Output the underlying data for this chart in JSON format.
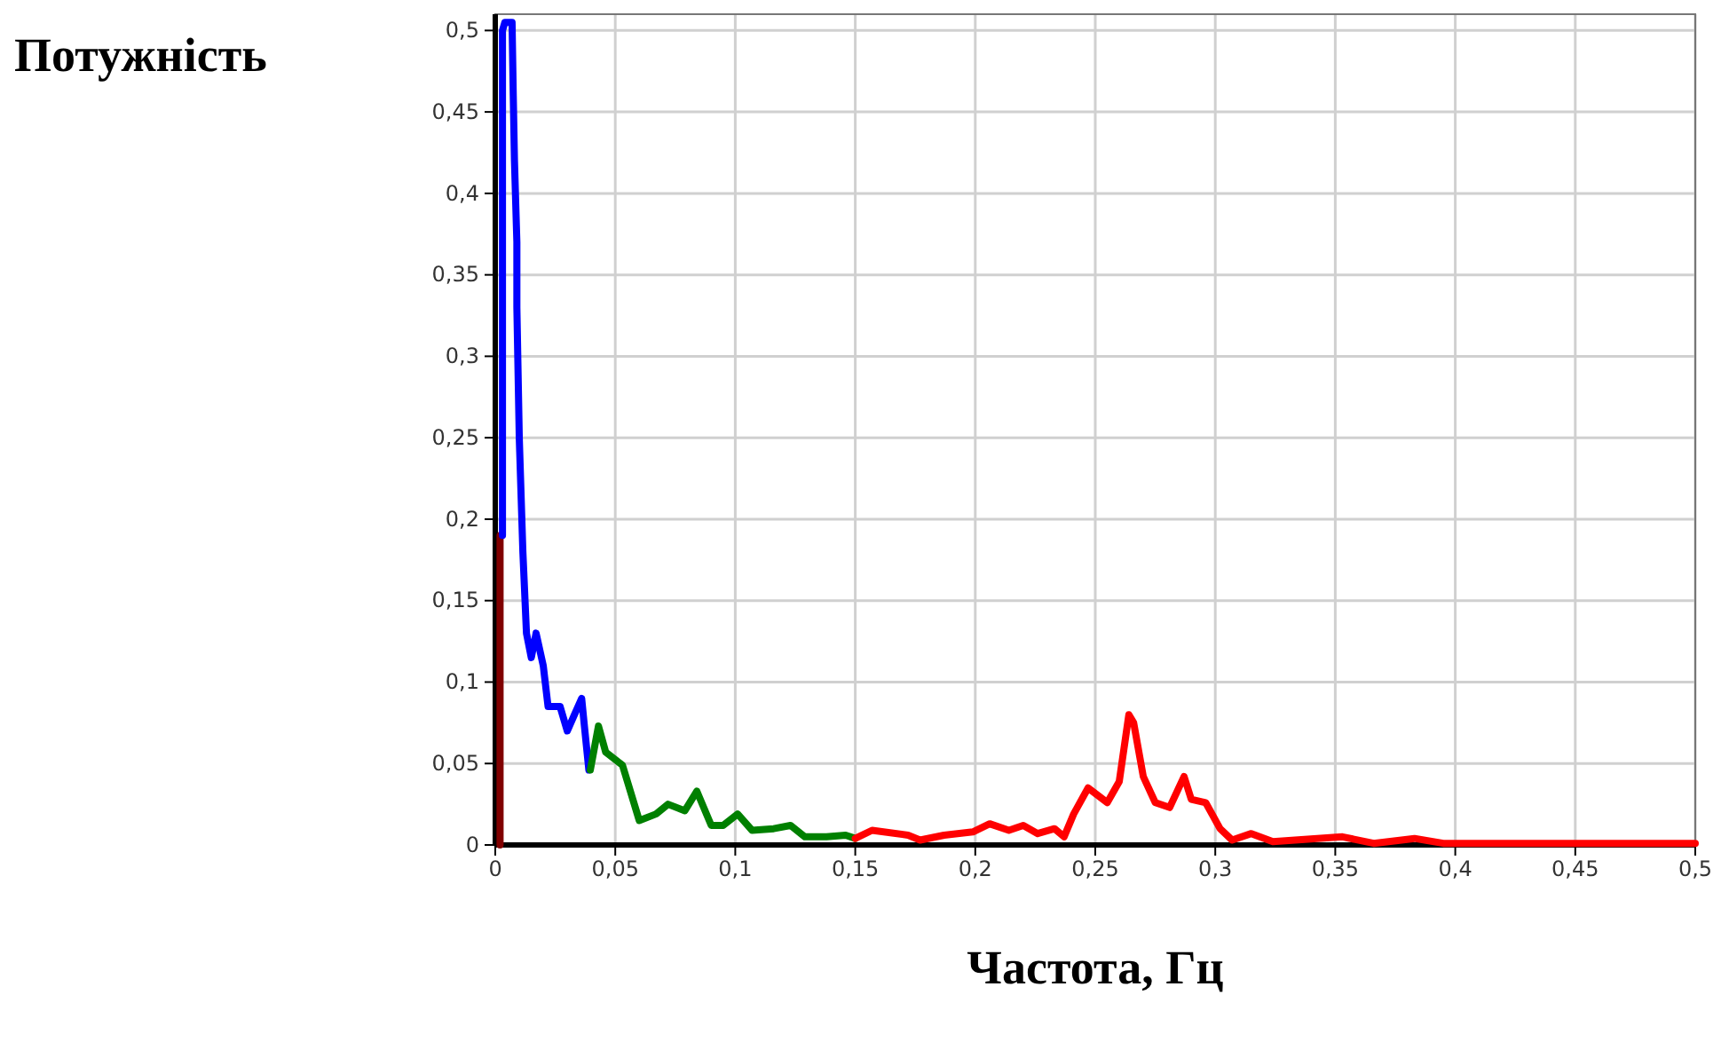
{
  "chart_data": {
    "type": "line",
    "ylabel": "Потужність",
    "xlabel": "Частота, Гц",
    "xlim": [
      0,
      0.5
    ],
    "ylim": [
      0,
      0.51
    ],
    "xticks": [
      {
        "value": 0,
        "label": "0"
      },
      {
        "value": 0.05,
        "label": "0,05"
      },
      {
        "value": 0.1,
        "label": "0,1"
      },
      {
        "value": 0.15,
        "label": "0,15"
      },
      {
        "value": 0.2,
        "label": "0,2"
      },
      {
        "value": 0.25,
        "label": "0,25"
      },
      {
        "value": 0.3,
        "label": "0,3"
      },
      {
        "value": 0.35,
        "label": "0,35"
      },
      {
        "value": 0.4,
        "label": "0,4"
      },
      {
        "value": 0.45,
        "label": "0,45"
      },
      {
        "value": 0.5,
        "label": "0,5"
      }
    ],
    "yticks": [
      {
        "value": 0,
        "label": "0"
      },
      {
        "value": 0.05,
        "label": "0,05"
      },
      {
        "value": 0.1,
        "label": "0,1"
      },
      {
        "value": 0.15,
        "label": "0,15"
      },
      {
        "value": 0.2,
        "label": "0,2"
      },
      {
        "value": 0.25,
        "label": "0,25"
      },
      {
        "value": 0.3,
        "label": "0,3"
      },
      {
        "value": 0.35,
        "label": "0,35"
      },
      {
        "value": 0.4,
        "label": "0,4"
      },
      {
        "value": 0.45,
        "label": "0,45"
      },
      {
        "value": 0.5,
        "label": "0,5"
      }
    ],
    "grid": true,
    "marker": "none",
    "line_style": "solid",
    "series": [
      {
        "color": "#800000",
        "x": [
          0.002,
          0.002,
          0.002
        ],
        "values": [
          0,
          0.05,
          0.19
        ]
      },
      {
        "color": "#0000ff",
        "x": [
          0.003,
          0.003,
          0.004,
          0.007,
          0.0075,
          0.008,
          0.009,
          0.009,
          0.01,
          0.0115,
          0.013,
          0.015,
          0.017,
          0.02,
          0.022,
          0.027,
          0.03,
          0.033,
          0.036,
          0.037,
          0.039
        ],
        "values": [
          0.19,
          0.5,
          0.505,
          0.505,
          0.46,
          0.42,
          0.37,
          0.33,
          0.25,
          0.18,
          0.13,
          0.115,
          0.13,
          0.11,
          0.085,
          0.085,
          0.07,
          0.08,
          0.09,
          0.075,
          0.046
        ]
      },
      {
        "color": "#008000",
        "x": [
          0.0396,
          0.043,
          0.046,
          0.053,
          0.06,
          0.067,
          0.072,
          0.079,
          0.084,
          0.09,
          0.095,
          0.101,
          0.107,
          0.116,
          0.123,
          0.129,
          0.138,
          0.146,
          0.15
        ],
        "values": [
          0.046,
          0.073,
          0.057,
          0.049,
          0.015,
          0.019,
          0.025,
          0.021,
          0.033,
          0.012,
          0.012,
          0.019,
          0.009,
          0.01,
          0.012,
          0.005,
          0.005,
          0.006,
          0.004
        ]
      },
      {
        "color": "#ff0000",
        "x": [
          0.15,
          0.157,
          0.172,
          0.177,
          0.187,
          0.199,
          0.206,
          0.214,
          0.22,
          0.226,
          0.233,
          0.237,
          0.241,
          0.247,
          0.255,
          0.26,
          0.264,
          0.266,
          0.27,
          0.275,
          0.281,
          0.287,
          0.29,
          0.296,
          0.302,
          0.307,
          0.315,
          0.324,
          0.353,
          0.366,
          0.383,
          0.395,
          0.5
        ],
        "values": [
          0.004,
          0.009,
          0.006,
          0.003,
          0.006,
          0.008,
          0.013,
          0.009,
          0.012,
          0.007,
          0.01,
          0.005,
          0.019,
          0.035,
          0.026,
          0.039,
          0.08,
          0.075,
          0.042,
          0.026,
          0.023,
          0.042,
          0.028,
          0.026,
          0.01,
          0.003,
          0.007,
          0.002,
          0.005,
          0.001,
          0.004,
          0.001,
          0.001
        ]
      }
    ]
  }
}
